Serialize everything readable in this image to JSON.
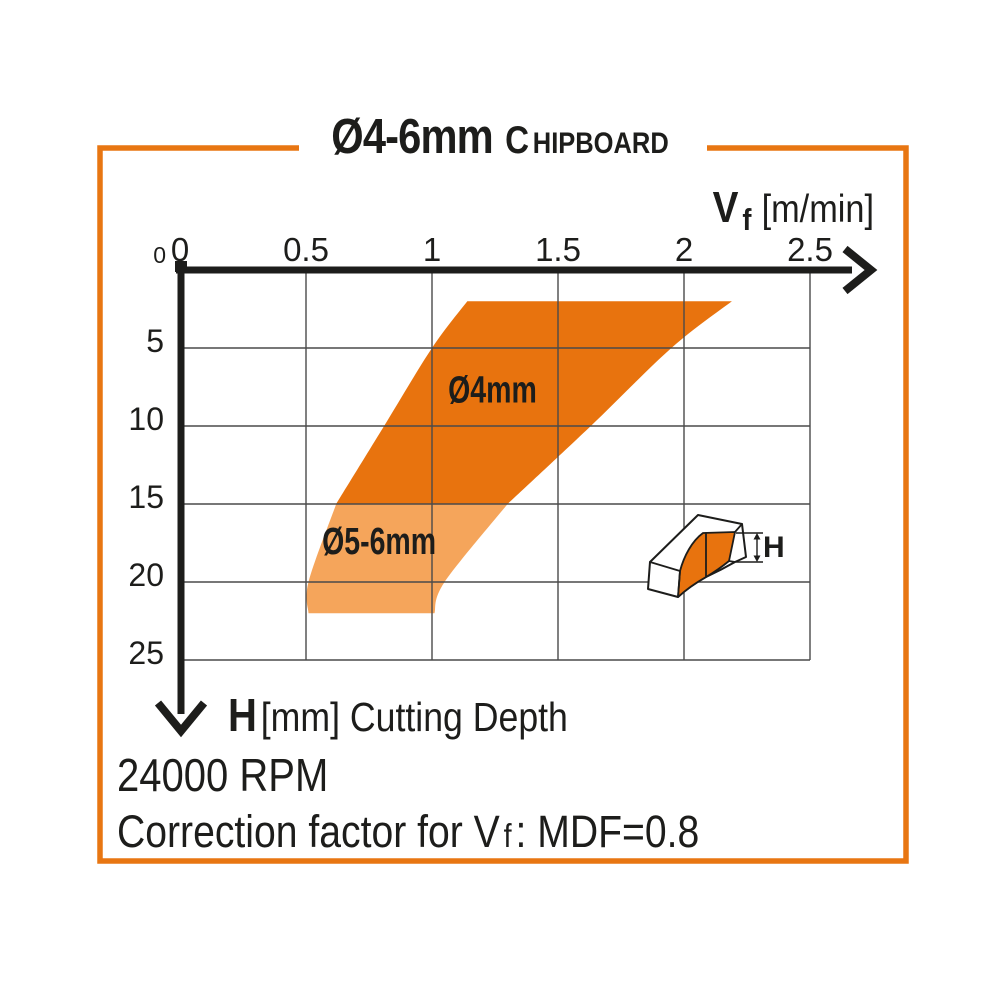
{
  "title": {
    "size_range": "Ø4-6mm",
    "material_initial": "C",
    "material_rest": "HIPBOARD"
  },
  "x_axis": {
    "symbol": "V",
    "symbol_sub": "f",
    "unit": "[m/min]",
    "tick_labels": [
      "0",
      "0.5",
      "1",
      "1.5",
      "2",
      "2.5"
    ]
  },
  "y_axis": {
    "origin_label": "0",
    "tick_labels": [
      "5",
      "10",
      "15",
      "20",
      "25"
    ]
  },
  "icon": {
    "dimension_label": "H"
  },
  "footer": {
    "h_symbol": "H",
    "h_caption": " [mm] Cutting Depth",
    "rpm": "24000 RPM",
    "correction_prefix": "Correction factor for V",
    "correction_sub": "f",
    "correction_suffix": ": MDF=0.8"
  },
  "colors": {
    "border": "#e87612",
    "band_dark": "#e8730e",
    "band_light": "#f5a55b",
    "ink": "#1d1d1b",
    "grid": "#4a4a4a"
  },
  "chart_data": {
    "type": "area",
    "title": "Ø4-6mm Chipboard",
    "xlabel": "Vf [m/min]",
    "ylabel": "H [mm] Cutting Depth",
    "xlim": [
      0,
      2.5
    ],
    "ylim": [
      0,
      25
    ],
    "y_axis_inverted": true,
    "grid": true,
    "x_ticks": [
      0,
      0.5,
      1,
      1.5,
      2,
      2.5
    ],
    "y_ticks": [
      0,
      5,
      10,
      15,
      20,
      25
    ],
    "series": [
      {
        "name": "Ø4mm",
        "color": "#e8730e",
        "label_at": [
          1.24,
          8.5
        ],
        "left_edge": [
          [
            1.14,
            2
          ],
          [
            1.0,
            5
          ],
          [
            0.81,
            10
          ],
          [
            0.62,
            15
          ]
        ],
        "right_edge": [
          [
            2.19,
            2
          ],
          [
            1.95,
            5
          ],
          [
            1.63,
            10
          ],
          [
            1.3,
            15
          ]
        ]
      },
      {
        "name": "Ø5-6mm",
        "color": "#f5a55b",
        "label_at": [
          0.79,
          18.2
        ],
        "left_edge": [
          [
            0.62,
            15
          ],
          [
            0.51,
            20
          ],
          [
            0.51,
            22
          ]
        ],
        "right_edge": [
          [
            1.3,
            15
          ],
          [
            1.05,
            20
          ],
          [
            1.01,
            22
          ]
        ]
      }
    ],
    "annotations": [
      "24000 RPM",
      "Correction factor for Vf: MDF=0.8"
    ]
  }
}
